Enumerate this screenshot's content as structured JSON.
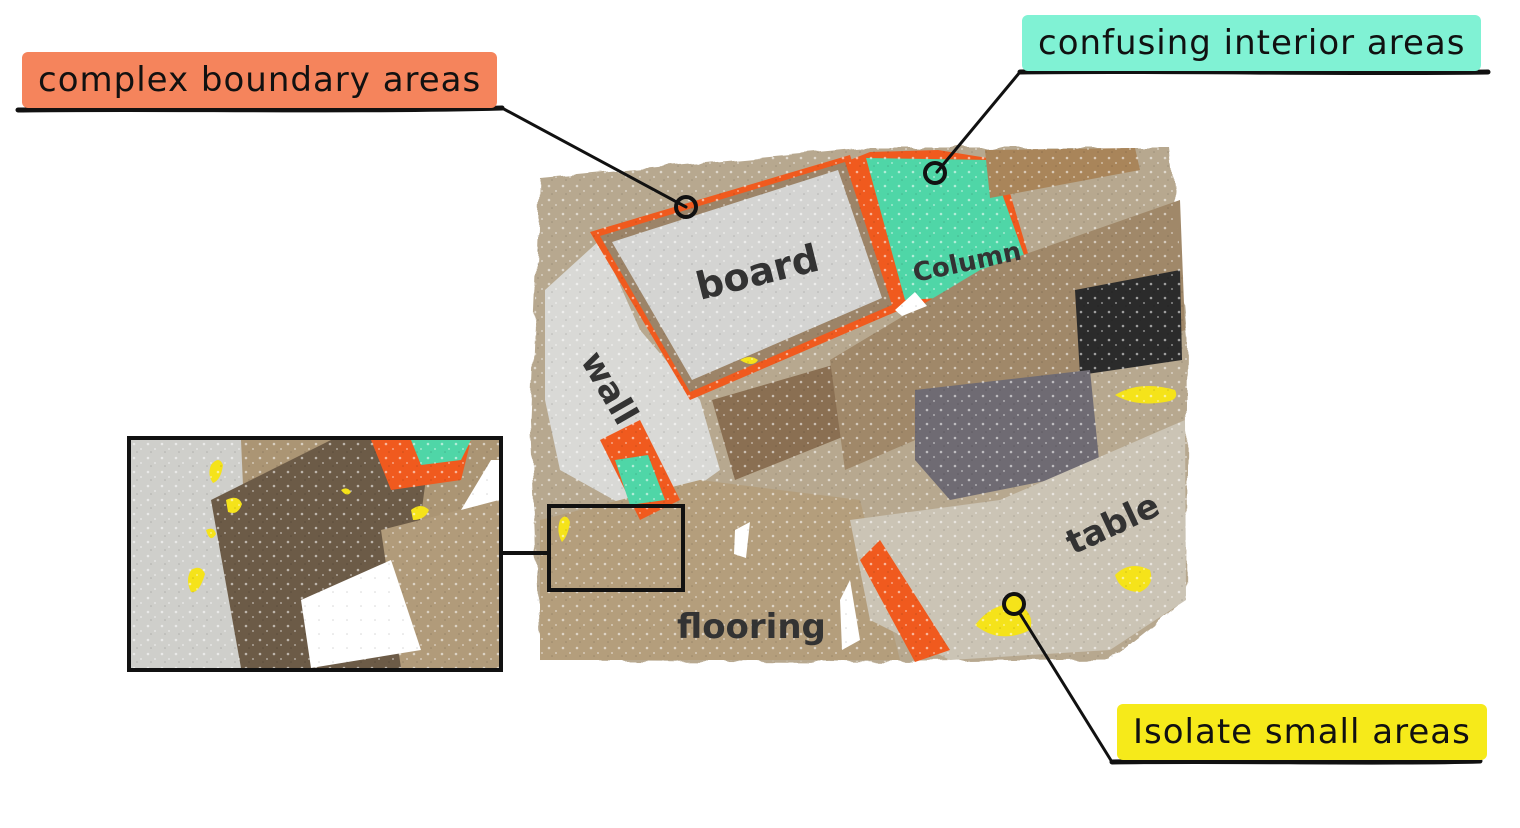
{
  "callouts": {
    "boundary": {
      "text": "complex boundary areas",
      "color": "#f5845c"
    },
    "interior": {
      "text": "confusing interior areas",
      "color": "#80f2d4"
    },
    "small": {
      "text": "Isolate small areas",
      "color": "#f6ea1a"
    }
  },
  "scene_labels": {
    "board": "board",
    "column": "Column",
    "wall": "wall",
    "table": "table",
    "flooring": "flooring"
  },
  "colors": {
    "boundary_highlight": "#f05a1e",
    "interior_highlight": "#4fd6a7",
    "small_highlight": "#f5e31a",
    "leader_line": "#111111"
  }
}
